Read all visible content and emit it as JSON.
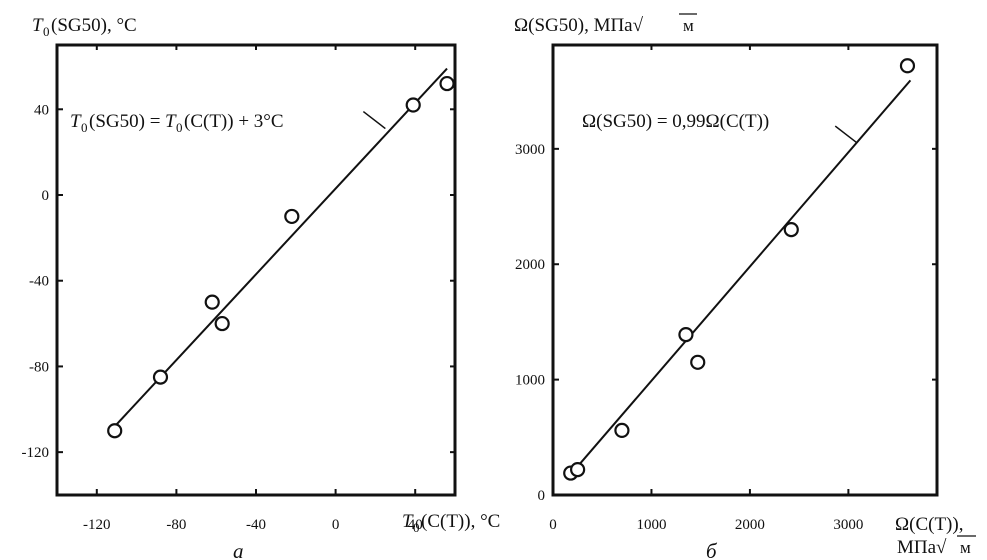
{
  "chart_data": [
    {
      "type": "scatter",
      "panel_label": "а",
      "ylabel": "T0(SG50), °C",
      "xlabel": "T0(C(T)), °C",
      "xlim": [
        -140,
        60
      ],
      "ylim": [
        -140,
        70
      ],
      "xticks": [
        -120,
        -80,
        -40,
        0,
        40
      ],
      "yticks": [
        -120,
        -80,
        -40,
        0,
        40
      ],
      "series": [
        {
          "points": [
            {
              "x": -111,
              "y": -110
            },
            {
              "x": -88,
              "y": -85
            },
            {
              "x": -62,
              "y": -50
            },
            {
              "x": -57,
              "y": -60
            },
            {
              "x": -22,
              "y": -10
            },
            {
              "x": 39,
              "y": 42
            },
            {
              "x": 56,
              "y": 52
            }
          ]
        }
      ],
      "fit_line": {
        "x_range": [
          -113,
          56
        ],
        "slope": 1.0,
        "intercept": 3
      },
      "annotation": "T0(SG50) = T0(C(T)) + 3°C",
      "annotation_anchor": {
        "x": 25,
        "y": 31
      }
    },
    {
      "type": "scatter",
      "panel_label": "б",
      "ylabel": "Ω(SG50), МПа√м",
      "xlabel": "Ω(C(T)), МПа√м",
      "xlim": [
        0,
        3900
      ],
      "ylim": [
        0,
        3900
      ],
      "xticks": [
        0,
        1000,
        2000,
        3000
      ],
      "yticks": [
        0,
        1000,
        2000,
        3000
      ],
      "series": [
        {
          "points": [
            {
              "x": 180,
              "y": 190
            },
            {
              "x": 250,
              "y": 220
            },
            {
              "x": 700,
              "y": 560
            },
            {
              "x": 1350,
              "y": 1390
            },
            {
              "x": 1470,
              "y": 1150
            },
            {
              "x": 2420,
              "y": 2300
            },
            {
              "x": 3600,
              "y": 3720
            }
          ]
        }
      ],
      "fit_line": {
        "x_range": [
          180,
          3630
        ],
        "slope": 0.99,
        "intercept": 0
      },
      "annotation": "Ω(SG50) = 0,99Ω(C(T))",
      "annotation_anchor": {
        "x": 3090,
        "y": 3050
      }
    }
  ]
}
